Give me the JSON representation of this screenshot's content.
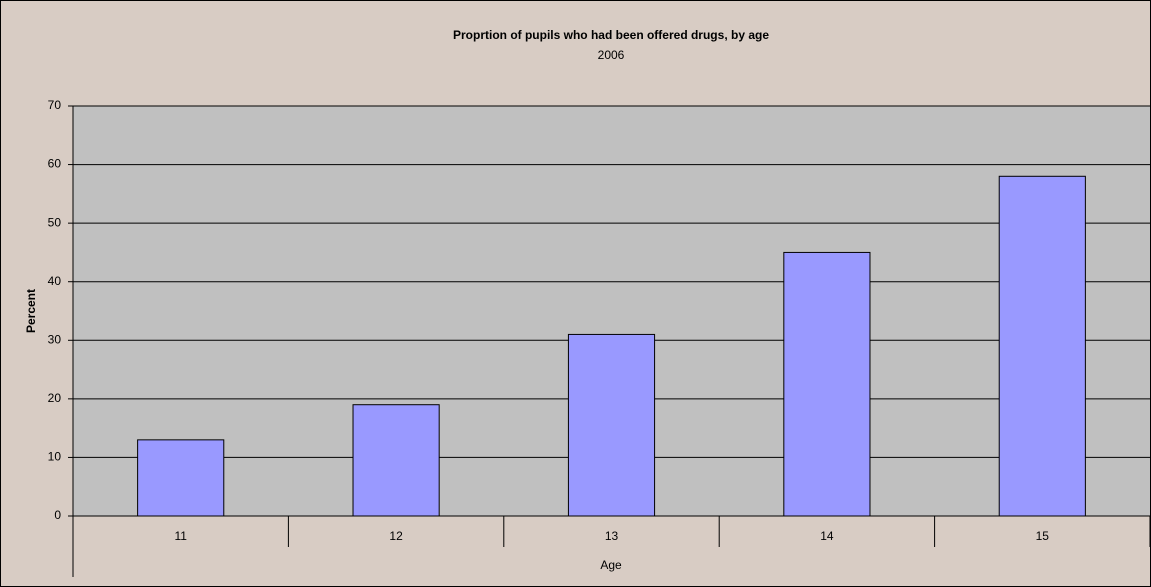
{
  "chart_data": {
    "type": "bar",
    "title": "Proprtion of pupils who had been offered drugs, by age",
    "subtitle": "2006",
    "x_label": "Age",
    "y_label": "Percent",
    "categories": [
      "11",
      "12",
      "13",
      "14",
      "15"
    ],
    "values": [
      13,
      19,
      31,
      45,
      58
    ],
    "color": "#9999ff",
    "ylim": [
      0,
      70
    ],
    "yticks": [
      0,
      10,
      20,
      30,
      40,
      50,
      60,
      70
    ],
    "grid": true
  }
}
